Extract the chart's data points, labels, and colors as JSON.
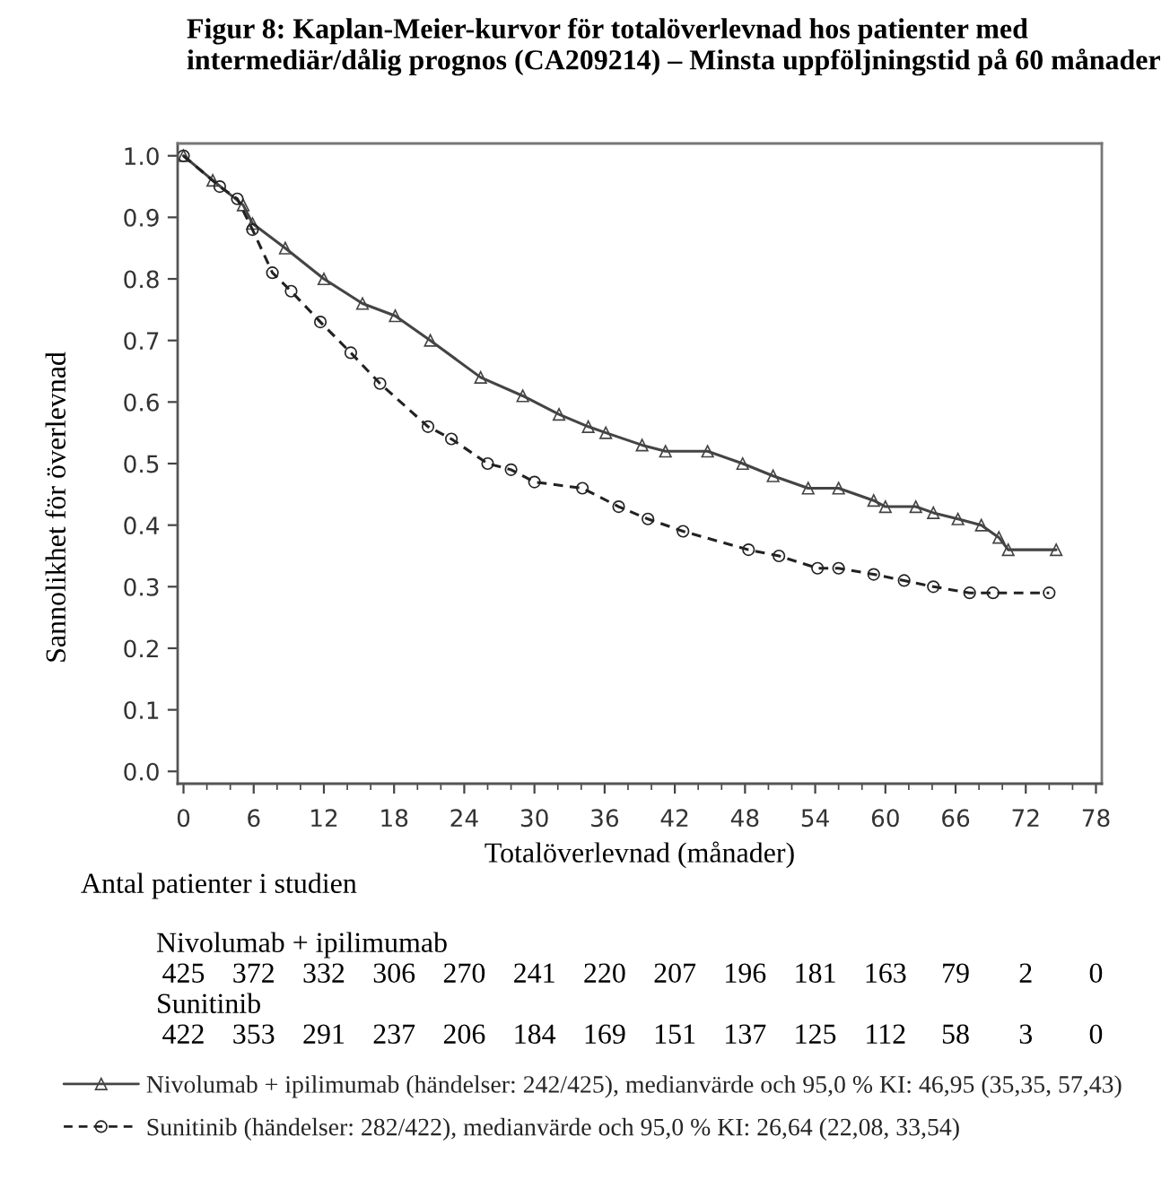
{
  "chart_data": {
    "type": "line",
    "title": "Figur 8: Kaplan-Meier-kurvor för totalöverlevnad hos patienter med intermediär/dålig prognos (CA209214) – Minsta uppföljningstid på 60 månader",
    "xlabel": "Totalöverlevnad (månader)",
    "ylabel": "Sannolikhet för överlevnad",
    "series": [
      {
        "name": "Nivolumab + ipilimumab (händelser: 242/425), medianvärde och 95,0 % KI: 46,95 (35,35, 57,43)",
        "color": "#444444",
        "marker": "triangle",
        "line_style": "solid",
        "x": [
          0,
          2.5,
          5.1,
          5.9,
          8.7,
          12,
          15.3,
          18.1,
          21.1,
          25.4,
          29,
          32.1,
          34.6,
          36.1,
          39.2,
          41.2,
          44.8,
          47.8,
          50.4,
          53.4,
          56,
          59,
          60,
          62.6,
          64.1,
          66.2,
          68.2,
          69.7,
          70.5,
          74.6
        ],
        "values": [
          1,
          0.96,
          0.92,
          0.89,
          0.85,
          0.8,
          0.76,
          0.74,
          0.7,
          0.64,
          0.61,
          0.58,
          0.56,
          0.55,
          0.53,
          0.52,
          0.52,
          0.5,
          0.48,
          0.46,
          0.46,
          0.44,
          0.43,
          0.43,
          0.42,
          0.41,
          0.4,
          0.38,
          0.36,
          0.36
        ]
      },
      {
        "name": "Sunitinib (händelser: 282/422), medianvärde och 95,0 % KI: 26,64 (22,08, 33,54)",
        "color": "#222222",
        "marker": "circle",
        "line_style": "dashed",
        "x": [
          0,
          3.1,
          4.6,
          5.9,
          7.6,
          9.2,
          11.7,
          14.3,
          16.8,
          20.9,
          22.9,
          26,
          28,
          30,
          34.1,
          37.2,
          39.7,
          42.7,
          48.3,
          50.9,
          54.2,
          56,
          59,
          61.6,
          64.1,
          67.2,
          69.2,
          74
        ],
        "values": [
          1,
          0.95,
          0.93,
          0.88,
          0.81,
          0.78,
          0.73,
          0.68,
          0.63,
          0.56,
          0.54,
          0.5,
          0.49,
          0.47,
          0.46,
          0.43,
          0.41,
          0.39,
          0.36,
          0.35,
          0.33,
          0.33,
          0.32,
          0.31,
          0.3,
          0.29,
          0.29,
          0.29
        ]
      }
    ],
    "xlim": [
      -0.5,
      78.5
    ],
    "xticks": [
      0,
      6,
      12,
      18,
      24,
      30,
      36,
      42,
      48,
      54,
      60,
      66,
      72,
      78
    ],
    "ylim": [
      -0.02,
      1.02
    ],
    "yticks": [
      {
        "value": 0,
        "label": "0.0"
      },
      0.1,
      0.2,
      0.3,
      0.4,
      0.5,
      0.6,
      0.7,
      0.8,
      0.9,
      {
        "value": 1,
        "label": "1.0"
      }
    ],
    "grid": false,
    "legend": "bottom",
    "annotations": [
      "Antal patienter i studien",
      "Nivolumab + ipilimumab",
      "425",
      "372",
      "332",
      "306",
      "270",
      "241",
      "220",
      "207",
      "196",
      "181",
      "163",
      "79",
      "2",
      "0",
      "Sunitinib",
      "422",
      "353",
      "291",
      "237",
      "206",
      "184",
      "169",
      "151",
      "137",
      "125",
      "112",
      "58",
      "3",
      "0"
    ]
  }
}
